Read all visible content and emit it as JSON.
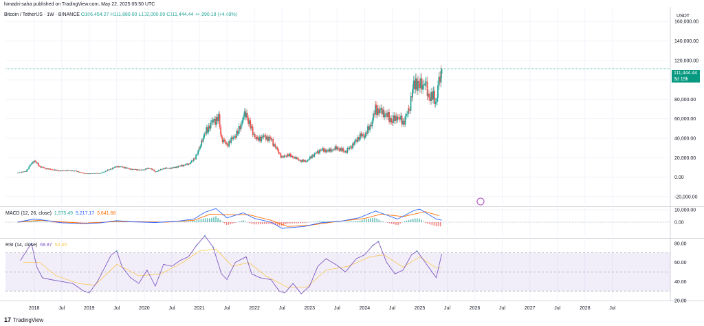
{
  "header": {
    "publisher": "himadri-saha published on TradingView.com, May 22, 2025 05:50 UTC"
  },
  "symbol": {
    "name": "Bitcoin / TetherUS · 1W · BINANCE",
    "ohlc": "O106,454.27  H111,880.00  L102,000.00  C111,444.44  +4,990.18 (+4.69%)"
  },
  "price_axis": {
    "unit": "USDT",
    "current_price": "111,444.44",
    "countdown": "3d 19h"
  },
  "macd_label": {
    "name": "MACD (12, 26, close)",
    "macd": "1,575.49",
    "signal": "5,217.17",
    "hist": "3,641.68"
  },
  "rsi_label": {
    "name": "RSI (14, close)",
    "rsi": "68.87",
    "ma": "54.40"
  },
  "brand": {
    "name": "TradingView"
  },
  "colors": {
    "up": "#26a69a",
    "down": "#ef5350",
    "macd": "#2962ff",
    "signal": "#ff6d00",
    "rsi": "#7e57c2",
    "rsi_ma": "#f9c74f"
  },
  "chart_data": [
    {
      "type": "candlestick",
      "title": "Bitcoin / TetherUS · 1W · BINANCE",
      "x_ticks": [
        "2018",
        "Jul",
        "2019",
        "Jul",
        "2020",
        "Jul",
        "2021",
        "Jul",
        "2022",
        "Jul",
        "2023",
        "Jul",
        "2024",
        "Jul",
        "2025",
        "Jul",
        "2026",
        "Jul",
        "2027",
        "Jul",
        "2028",
        "Jul"
      ],
      "y_ticks": [
        160000,
        140000,
        120000,
        100000,
        80000,
        60000,
        40000,
        20000,
        0,
        -20000
      ],
      "ylim": [
        -30000,
        175000
      ],
      "close_path": [
        [
          2017.7,
          4500
        ],
        [
          2017.85,
          6000
        ],
        [
          2017.95,
          14000
        ],
        [
          2018.0,
          17000
        ],
        [
          2018.1,
          11000
        ],
        [
          2018.2,
          9000
        ],
        [
          2018.3,
          8000
        ],
        [
          2018.45,
          6500
        ],
        [
          2018.6,
          7000
        ],
        [
          2018.75,
          6300
        ],
        [
          2018.9,
          4000
        ],
        [
          2019.0,
          3600
        ],
        [
          2019.2,
          4000
        ],
        [
          2019.35,
          7500
        ],
        [
          2019.5,
          11000
        ],
        [
          2019.6,
          10500
        ],
        [
          2019.75,
          8200
        ],
        [
          2019.95,
          7200
        ],
        [
          2020.1,
          9500
        ],
        [
          2020.2,
          5500
        ],
        [
          2020.35,
          9000
        ],
        [
          2020.5,
          9300
        ],
        [
          2020.65,
          11500
        ],
        [
          2020.8,
          13500
        ],
        [
          2020.9,
          18000
        ],
        [
          2021.0,
          29000
        ],
        [
          2021.05,
          39000
        ],
        [
          2021.15,
          50000
        ],
        [
          2021.25,
          58000
        ],
        [
          2021.35,
          60000
        ],
        [
          2021.4,
          40000
        ],
        [
          2021.5,
          33000
        ],
        [
          2021.6,
          40000
        ],
        [
          2021.7,
          46000
        ],
        [
          2021.8,
          62000
        ],
        [
          2021.85,
          65000
        ],
        [
          2021.95,
          48000
        ],
        [
          2022.05,
          38000
        ],
        [
          2022.15,
          42000
        ],
        [
          2022.3,
          39000
        ],
        [
          2022.4,
          29000
        ],
        [
          2022.5,
          20000
        ],
        [
          2022.6,
          23000
        ],
        [
          2022.75,
          19500
        ],
        [
          2022.85,
          16500
        ],
        [
          2022.95,
          16500
        ],
        [
          2023.05,
          22000
        ],
        [
          2023.2,
          28000
        ],
        [
          2023.35,
          27000
        ],
        [
          2023.5,
          30000
        ],
        [
          2023.65,
          26000
        ],
        [
          2023.8,
          34000
        ],
        [
          2023.9,
          42000
        ],
        [
          2024.0,
          43000
        ],
        [
          2024.1,
          52000
        ],
        [
          2024.2,
          70000
        ],
        [
          2024.35,
          66000
        ],
        [
          2024.5,
          58000
        ],
        [
          2024.6,
          62000
        ],
        [
          2024.7,
          56000
        ],
        [
          2024.8,
          68000
        ],
        [
          2024.87,
          90000
        ],
        [
          2024.93,
          98000
        ],
        [
          2025.0,
          94000
        ],
        [
          2025.1,
          97000
        ],
        [
          2025.15,
          84000
        ],
        [
          2025.25,
          82000
        ],
        [
          2025.3,
          76000
        ],
        [
          2025.33,
          94000
        ],
        [
          2025.39,
          104000
        ],
        [
          2025.4,
          111444
        ]
      ],
      "last": {
        "open": 106454.27,
        "high": 111880.0,
        "low": 102000.0,
        "close": 111444.44,
        "change": 4990.18,
        "change_pct": 4.69
      }
    },
    {
      "type": "line",
      "title": "MACD (12, 26, close)",
      "y_ticks": [
        10000,
        0
      ],
      "series": [
        {
          "name": "MACD",
          "values": [
            [
              2017.7,
              0
            ],
            [
              2018.0,
              2500
            ],
            [
              2018.2,
              1500
            ],
            [
              2018.5,
              -500
            ],
            [
              2018.9,
              -1200
            ],
            [
              2019.2,
              -600
            ],
            [
              2019.5,
              1200
            ],
            [
              2019.8,
              300
            ],
            [
              2020.2,
              -300
            ],
            [
              2020.6,
              700
            ],
            [
              2020.9,
              2500
            ],
            [
              2021.1,
              8000
            ],
            [
              2021.3,
              11000
            ],
            [
              2021.5,
              3500
            ],
            [
              2021.8,
              7500
            ],
            [
              2022.0,
              3000
            ],
            [
              2022.3,
              0
            ],
            [
              2022.5,
              -5000
            ],
            [
              2022.9,
              -3500
            ],
            [
              2023.2,
              -500
            ],
            [
              2023.6,
              1000
            ],
            [
              2023.9,
              3500
            ],
            [
              2024.2,
              9000
            ],
            [
              2024.6,
              2500
            ],
            [
              2024.9,
              9500
            ],
            [
              2025.0,
              10500
            ],
            [
              2025.3,
              2500
            ],
            [
              2025.4,
              1575.49
            ]
          ]
        },
        {
          "name": "Signal",
          "values": [
            [
              2017.7,
              0
            ],
            [
              2018.1,
              1500
            ],
            [
              2018.5,
              300
            ],
            [
              2018.9,
              -900
            ],
            [
              2019.4,
              200
            ],
            [
              2019.9,
              400
            ],
            [
              2020.4,
              0
            ],
            [
              2020.9,
              1500
            ],
            [
              2021.2,
              6500
            ],
            [
              2021.5,
              6000
            ],
            [
              2021.9,
              6000
            ],
            [
              2022.3,
              1500
            ],
            [
              2022.6,
              -3500
            ],
            [
              2023.0,
              -2500
            ],
            [
              2023.5,
              500
            ],
            [
              2024.0,
              3000
            ],
            [
              2024.3,
              6500
            ],
            [
              2024.7,
              4500
            ],
            [
              2025.1,
              8500
            ],
            [
              2025.35,
              5217.17
            ]
          ]
        }
      ],
      "histogram_last": 3641.68
    },
    {
      "type": "line",
      "title": "RSI (14, close)",
      "y_ticks": [
        80,
        60,
        40,
        20
      ],
      "bands": [
        70,
        50,
        30
      ],
      "series": [
        {
          "name": "RSI",
          "values": [
            [
              2017.75,
              62
            ],
            [
              2017.95,
              80
            ],
            [
              2018.05,
              55
            ],
            [
              2018.15,
              44
            ],
            [
              2018.3,
              42
            ],
            [
              2018.5,
              40
            ],
            [
              2018.7,
              38
            ],
            [
              2018.9,
              30
            ],
            [
              2019.0,
              28
            ],
            [
              2019.15,
              40
            ],
            [
              2019.4,
              68
            ],
            [
              2019.5,
              72
            ],
            [
              2019.6,
              55
            ],
            [
              2019.75,
              44
            ],
            [
              2019.9,
              38
            ],
            [
              2020.05,
              52
            ],
            [
              2020.2,
              35
            ],
            [
              2020.35,
              58
            ],
            [
              2020.5,
              56
            ],
            [
              2020.65,
              62
            ],
            [
              2020.8,
              66
            ],
            [
              2020.95,
              78
            ],
            [
              2021.1,
              88
            ],
            [
              2021.25,
              76
            ],
            [
              2021.4,
              48
            ],
            [
              2021.5,
              42
            ],
            [
              2021.65,
              60
            ],
            [
              2021.85,
              66
            ],
            [
              2021.95,
              48
            ],
            [
              2022.1,
              44
            ],
            [
              2022.3,
              42
            ],
            [
              2022.45,
              30
            ],
            [
              2022.55,
              28
            ],
            [
              2022.7,
              38
            ],
            [
              2022.85,
              27
            ],
            [
              2023.0,
              35
            ],
            [
              2023.15,
              56
            ],
            [
              2023.3,
              64
            ],
            [
              2023.5,
              57
            ],
            [
              2023.65,
              50
            ],
            [
              2023.85,
              64
            ],
            [
              2024.0,
              68
            ],
            [
              2024.15,
              78
            ],
            [
              2024.25,
              82
            ],
            [
              2024.4,
              60
            ],
            [
              2024.55,
              48
            ],
            [
              2024.7,
              52
            ],
            [
              2024.85,
              68
            ],
            [
              2024.95,
              72
            ],
            [
              2025.1,
              60
            ],
            [
              2025.25,
              48
            ],
            [
              2025.3,
              44
            ],
            [
              2025.4,
              68.87
            ]
          ]
        },
        {
          "name": "RSI MA",
          "values": [
            [
              2017.8,
              60
            ],
            [
              2018.1,
              60
            ],
            [
              2018.4,
              46
            ],
            [
              2018.8,
              38
            ],
            [
              2019.1,
              36
            ],
            [
              2019.5,
              58
            ],
            [
              2019.9,
              46
            ],
            [
              2020.3,
              48
            ],
            [
              2020.7,
              60
            ],
            [
              2021.0,
              72
            ],
            [
              2021.3,
              74
            ],
            [
              2021.6,
              56
            ],
            [
              2021.9,
              60
            ],
            [
              2022.2,
              46
            ],
            [
              2022.6,
              34
            ],
            [
              2022.95,
              34
            ],
            [
              2023.3,
              52
            ],
            [
              2023.7,
              56
            ],
            [
              2024.1,
              66
            ],
            [
              2024.35,
              68
            ],
            [
              2024.7,
              55
            ],
            [
              2025.0,
              66
            ],
            [
              2025.3,
              54
            ],
            [
              2025.4,
              54.4
            ]
          ]
        }
      ]
    }
  ]
}
